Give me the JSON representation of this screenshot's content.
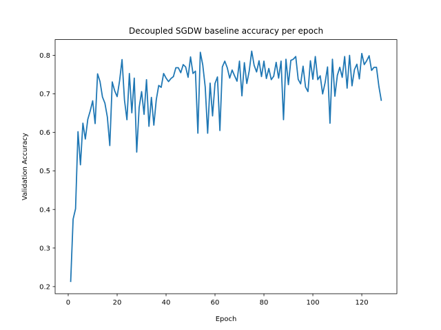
{
  "chart_data": {
    "type": "line",
    "title": "Decoupled SGDW baseline accuracy per epoch",
    "xlabel": "Epoch",
    "ylabel": "Validation Accuracy",
    "xlim": [
      -5.35,
      134.35
    ],
    "ylim": [
      0.1816,
      0.8409
    ],
    "x_ticks": [
      0,
      20,
      40,
      60,
      80,
      100,
      120
    ],
    "y_ticks": [
      0.2,
      0.3,
      0.4,
      0.5,
      0.6,
      0.7,
      0.8
    ],
    "grid": false,
    "legend": "none",
    "line_color": "#1f77b4",
    "series": [
      {
        "x": [
          1,
          2,
          3,
          4,
          5,
          6,
          7,
          8,
          9,
          10,
          11,
          12,
          13,
          14,
          15,
          16,
          17,
          18,
          19,
          20,
          21,
          22,
          23,
          24,
          25,
          26,
          27,
          28,
          29,
          30,
          31,
          32,
          33,
          34,
          35,
          36,
          37,
          38,
          39,
          40,
          41,
          42,
          43,
          44,
          45,
          46,
          47,
          48,
          49,
          50,
          51,
          52,
          53,
          54,
          55,
          56,
          57,
          58,
          59,
          60,
          61,
          62,
          63,
          64,
          65,
          66,
          67,
          68,
          69,
          70,
          71,
          72,
          73,
          74,
          75,
          76,
          77,
          78,
          79,
          80,
          81,
          82,
          83,
          84,
          85,
          86,
          87,
          88,
          89,
          90,
          91,
          92,
          93,
          94,
          95,
          96,
          97,
          98,
          99,
          100,
          101,
          102,
          103,
          104,
          105,
          106,
          107,
          108,
          109,
          110,
          111,
          112,
          113,
          114,
          115,
          116,
          117,
          118,
          119,
          120,
          121,
          122,
          123,
          124,
          125,
          126,
          127,
          128
        ],
        "values": [
          0.212,
          0.375,
          0.402,
          0.602,
          0.516,
          0.624,
          0.583,
          0.634,
          0.656,
          0.682,
          0.623,
          0.752,
          0.732,
          0.692,
          0.676,
          0.64,
          0.566,
          0.731,
          0.708,
          0.693,
          0.734,
          0.789,
          0.684,
          0.633,
          0.753,
          0.651,
          0.741,
          0.549,
          0.665,
          0.706,
          0.647,
          0.737,
          0.616,
          0.691,
          0.619,
          0.685,
          0.722,
          0.717,
          0.753,
          0.741,
          0.732,
          0.74,
          0.745,
          0.768,
          0.768,
          0.755,
          0.776,
          0.77,
          0.743,
          0.796,
          0.753,
          0.759,
          0.598,
          0.808,
          0.775,
          0.718,
          0.598,
          0.728,
          0.643,
          0.727,
          0.744,
          0.605,
          0.77,
          0.785,
          0.768,
          0.741,
          0.762,
          0.747,
          0.733,
          0.785,
          0.695,
          0.781,
          0.727,
          0.76,
          0.811,
          0.774,
          0.757,
          0.786,
          0.745,
          0.785,
          0.74,
          0.766,
          0.737,
          0.746,
          0.782,
          0.741,
          0.785,
          0.633,
          0.79,
          0.724,
          0.787,
          0.79,
          0.797,
          0.738,
          0.726,
          0.772,
          0.718,
          0.706,
          0.786,
          0.738,
          0.797,
          0.737,
          0.747,
          0.7,
          0.729,
          0.77,
          0.624,
          0.79,
          0.694,
          0.748,
          0.769,
          0.743,
          0.797,
          0.715,
          0.8,
          0.721,
          0.763,
          0.777,
          0.739,
          0.805,
          0.776,
          0.786,
          0.799,
          0.761,
          0.769,
          0.769,
          0.719,
          0.682
        ]
      }
    ]
  }
}
